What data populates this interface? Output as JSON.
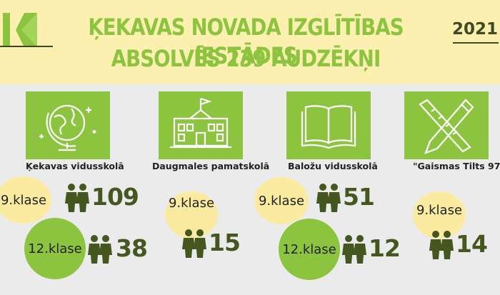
{
  "header": {
    "title_line1": "ĶEKAVAS NOVADA IZGLĪTĪBAS IESTĀDES",
    "title_line2": "ABSOLVĒS 239 AUDZĒKŅI",
    "year": "2021"
  },
  "colors": {
    "accent": "#8dc43f",
    "dark": "#45561f",
    "band": "#fcf0b0",
    "bubble_yellow": "#fbeba1"
  },
  "schools": [
    {
      "name": "Ķekavas vidusskolā",
      "icon": "globe-icon",
      "grade9_label": "9.klase",
      "grade9_count": "109",
      "grade12_label": "12.klase",
      "grade12_count": "38"
    },
    {
      "name": "Daugmales pamatskolā",
      "icon": "school-building-icon",
      "grade9_label": "9.klase",
      "grade9_count": "15"
    },
    {
      "name": "Baložu vidusskolā",
      "icon": "book-icon",
      "grade9_label": "9.klase",
      "grade9_count": "51",
      "grade12_label": "12.klase",
      "grade12_count": "12"
    },
    {
      "name": "\"Gaismas Tilts 97\"",
      "icon": "pencil-ruler-icon",
      "grade9_label": "9.klase",
      "grade9_count": "14"
    }
  ]
}
